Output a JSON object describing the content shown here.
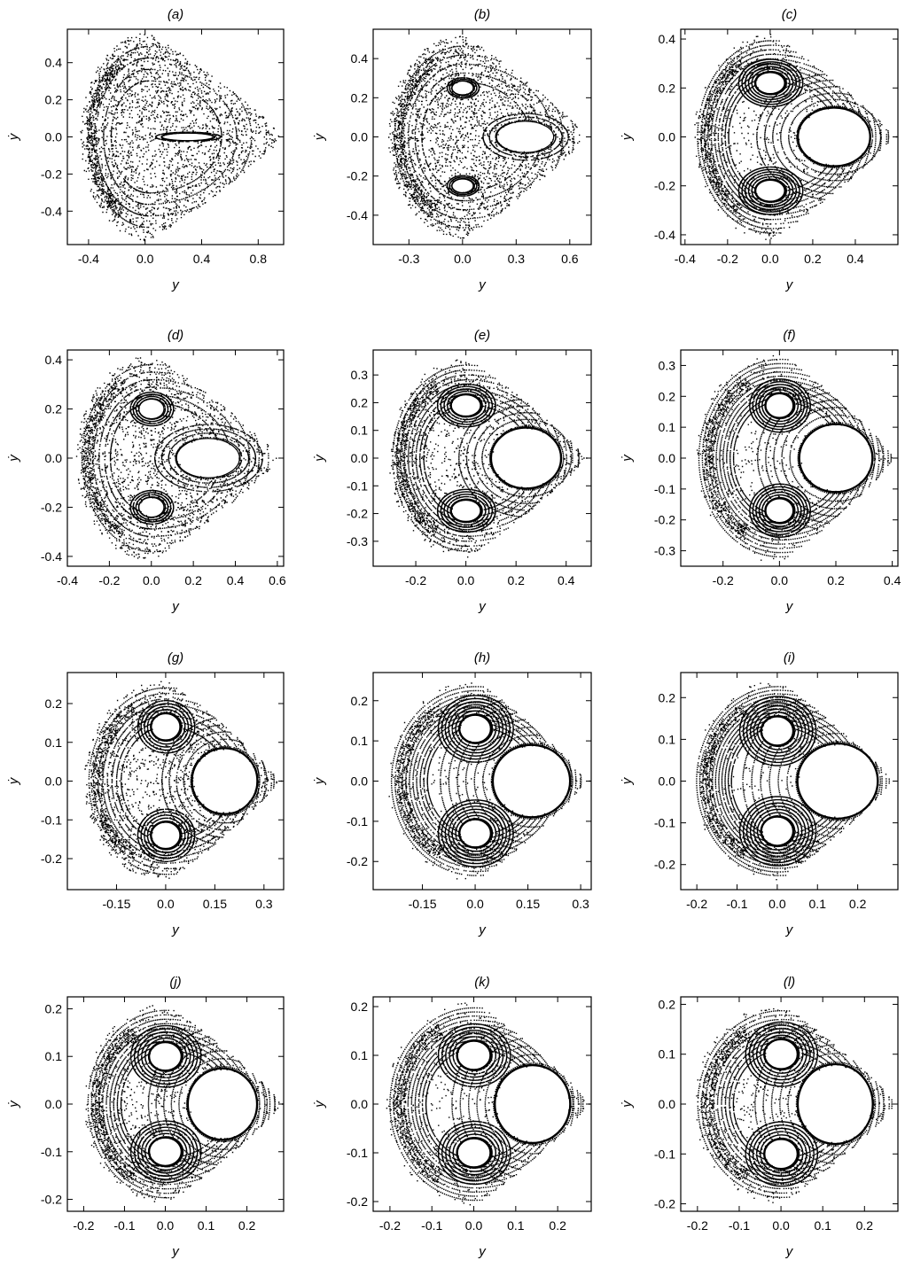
{
  "figure": {
    "background": "#ffffff",
    "ink": "#000000"
  },
  "chart_data": [
    {
      "panel": "(a)",
      "type": "scatter",
      "title": "(a)",
      "xlabel": "y",
      "ylabel": "ẏ",
      "xlim": [
        -0.55,
        0.98
      ],
      "ylim": [
        -0.58,
        0.58
      ],
      "xticks": [
        -0.4,
        0.0,
        0.4,
        0.8
      ],
      "xtick_labels": [
        "-0.4",
        "0.0",
        "0.4",
        "0.8"
      ],
      "yticks": [
        -0.4,
        -0.2,
        0.0,
        0.2,
        0.4
      ],
      "ytick_labels": [
        "-0.4",
        "-0.2",
        "0.0",
        "0.2",
        "0.4"
      ],
      "boundary": {
        "x_min": -0.46,
        "x_max": 0.96,
        "y_max": 0.56,
        "x_at_ymax": 0.02
      },
      "islands": [
        {
          "x": 0.3,
          "y": 0.0,
          "rx": 0.18,
          "ry": 0.02
        }
      ],
      "regularity": 0.05
    },
    {
      "panel": "(b)",
      "type": "scatter",
      "title": "(b)",
      "xlabel": "y",
      "ylabel": "ẏ",
      "xlim": [
        -0.5,
        0.72
      ],
      "ylim": [
        -0.55,
        0.55
      ],
      "xticks": [
        -0.3,
        0.0,
        0.3,
        0.6
      ],
      "xtick_labels": [
        "-0.3",
        "0.0",
        "0.3",
        "0.6"
      ],
      "yticks": [
        -0.4,
        -0.2,
        0.0,
        0.2,
        0.4
      ],
      "ytick_labels": [
        "-0.4",
        "-0.2",
        "0.0",
        "0.2",
        "0.4"
      ],
      "boundary": {
        "x_min": -0.42,
        "x_max": 0.68,
        "y_max": 0.52,
        "x_at_ymax": 0.0
      },
      "islands": [
        {
          "x": 0.35,
          "y": 0.0,
          "rx": 0.16,
          "ry": 0.08
        },
        {
          "x": 0.0,
          "y": 0.25,
          "rx": 0.06,
          "ry": 0.035
        },
        {
          "x": 0.0,
          "y": -0.25,
          "rx": 0.06,
          "ry": 0.035
        }
      ],
      "regularity": 0.15
    },
    {
      "panel": "(c)",
      "type": "scatter",
      "title": "(c)",
      "xlabel": "y",
      "ylabel": "ẏ",
      "xlim": [
        -0.42,
        0.6
      ],
      "ylim": [
        -0.44,
        0.44
      ],
      "xticks": [
        -0.4,
        -0.2,
        0.0,
        0.2,
        0.4
      ],
      "xtick_labels": [
        "-0.4",
        "-0.2",
        "0.0",
        "0.2",
        "0.4"
      ],
      "yticks": [
        -0.4,
        -0.2,
        0.0,
        0.2,
        0.4
      ],
      "ytick_labels": [
        "-0.4",
        "-0.2",
        "0.0",
        "0.2",
        "0.4"
      ],
      "boundary": {
        "x_min": -0.36,
        "x_max": 0.57,
        "y_max": 0.42,
        "x_at_ymax": 0.0
      },
      "islands": [
        {
          "x": 0.3,
          "y": 0.0,
          "rx": 0.17,
          "ry": 0.12
        },
        {
          "x": 0.0,
          "y": 0.22,
          "rx": 0.07,
          "ry": 0.045
        },
        {
          "x": 0.0,
          "y": -0.22,
          "rx": 0.07,
          "ry": 0.045
        }
      ],
      "regularity": 0.75
    },
    {
      "panel": "(d)",
      "type": "scatter",
      "title": "(d)",
      "xlabel": "y",
      "ylabel": "ẏ",
      "xlim": [
        -0.4,
        0.63
      ],
      "ylim": [
        -0.44,
        0.44
      ],
      "xticks": [
        -0.4,
        -0.2,
        0.0,
        0.2,
        0.4,
        0.6
      ],
      "xtick_labels": [
        "-0.4",
        "-0.2",
        "0.0",
        "0.2",
        "0.4",
        "0.6"
      ],
      "yticks": [
        -0.4,
        -0.2,
        0.0,
        0.2,
        0.4
      ],
      "ytick_labels": [
        "-0.4",
        "-0.2",
        "0.0",
        "0.2",
        "0.4"
      ],
      "boundary": {
        "x_min": -0.36,
        "x_max": 0.6,
        "y_max": 0.42,
        "x_at_ymax": 0.0
      },
      "islands": [
        {
          "x": 0.27,
          "y": 0.0,
          "rx": 0.15,
          "ry": 0.08
        },
        {
          "x": 0.0,
          "y": 0.2,
          "rx": 0.06,
          "ry": 0.04
        },
        {
          "x": 0.0,
          "y": -0.2,
          "rx": 0.06,
          "ry": 0.04
        }
      ],
      "regularity": 0.3
    },
    {
      "panel": "(e)",
      "type": "scatter",
      "title": "(e)",
      "xlabel": "y",
      "ylabel": "ẏ",
      "xlim": [
        -0.37,
        0.5
      ],
      "ylim": [
        -0.39,
        0.39
      ],
      "xticks": [
        -0.2,
        0.0,
        0.2,
        0.4
      ],
      "xtick_labels": [
        "-0.2",
        "0.0",
        "0.2",
        "0.4"
      ],
      "yticks": [
        -0.3,
        -0.2,
        -0.1,
        0.0,
        0.1,
        0.2,
        0.3
      ],
      "ytick_labels": [
        "-0.3",
        "-0.2",
        "-0.1",
        "0.0",
        "0.1",
        "0.2",
        "0.3"
      ],
      "boundary": {
        "x_min": -0.31,
        "x_max": 0.47,
        "y_max": 0.36,
        "x_at_ymax": 0.0
      },
      "islands": [
        {
          "x": 0.24,
          "y": 0.0,
          "rx": 0.14,
          "ry": 0.11
        },
        {
          "x": 0.0,
          "y": 0.19,
          "rx": 0.06,
          "ry": 0.04
        },
        {
          "x": 0.0,
          "y": -0.19,
          "rx": 0.06,
          "ry": 0.04
        }
      ],
      "regularity": 0.6
    },
    {
      "panel": "(f)",
      "type": "scatter",
      "title": "(f)",
      "xlabel": "y",
      "ylabel": "ẏ",
      "xlim": [
        -0.35,
        0.42
      ],
      "ylim": [
        -0.35,
        0.35
      ],
      "xticks": [
        -0.2,
        0.0,
        0.2,
        0.4
      ],
      "xtick_labels": [
        "-0.2",
        "0.0",
        "0.2",
        "0.4"
      ],
      "yticks": [
        -0.3,
        -0.2,
        -0.1,
        0.0,
        0.1,
        0.2,
        0.3
      ],
      "ytick_labels": [
        "-0.3",
        "-0.2",
        "-0.1",
        "0.0",
        "0.1",
        "0.2",
        "0.3"
      ],
      "boundary": {
        "x_min": -0.3,
        "x_max": 0.4,
        "y_max": 0.34,
        "x_at_ymax": 0.0
      },
      "islands": [
        {
          "x": 0.2,
          "y": 0.0,
          "rx": 0.13,
          "ry": 0.11
        },
        {
          "x": 0.0,
          "y": 0.17,
          "rx": 0.05,
          "ry": 0.04
        },
        {
          "x": 0.0,
          "y": -0.17,
          "rx": 0.05,
          "ry": 0.04
        }
      ],
      "regularity": 0.85
    },
    {
      "panel": "(g)",
      "type": "scatter",
      "title": "(g)",
      "xlabel": "y",
      "ylabel": "ẏ",
      "xlim": [
        -0.3,
        0.36
      ],
      "ylim": [
        -0.28,
        0.28
      ],
      "xticks": [
        -0.15,
        0.0,
        0.15,
        0.3
      ],
      "xtick_labels": [
        "-0.15",
        "0.0",
        "0.15",
        "0.3"
      ],
      "yticks": [
        -0.2,
        -0.1,
        0.0,
        0.1,
        0.2
      ],
      "ytick_labels": [
        "-0.2",
        "-0.1",
        "0.0",
        "0.1",
        "0.2"
      ],
      "boundary": {
        "x_min": -0.25,
        "x_max": 0.34,
        "y_max": 0.26,
        "x_at_ymax": 0.0
      },
      "islands": [
        {
          "x": 0.18,
          "y": 0.0,
          "rx": 0.1,
          "ry": 0.085
        },
        {
          "x": 0.0,
          "y": 0.14,
          "rx": 0.045,
          "ry": 0.035
        },
        {
          "x": 0.0,
          "y": -0.14,
          "rx": 0.045,
          "ry": 0.035
        }
      ],
      "regularity": 0.5
    },
    {
      "panel": "(h)",
      "type": "scatter",
      "title": "(h)",
      "xlabel": "y",
      "ylabel": "ẏ",
      "xlim": [
        -0.29,
        0.33
      ],
      "ylim": [
        -0.27,
        0.27
      ],
      "xticks": [
        -0.15,
        0.0,
        0.15,
        0.3
      ],
      "xtick_labels": [
        "-0.15",
        "0.0",
        "0.15",
        "0.3"
      ],
      "yticks": [
        -0.2,
        -0.1,
        0.0,
        0.1,
        0.2
      ],
      "ytick_labels": [
        "-0.2",
        "-0.1",
        "0.0",
        "0.1",
        "0.2"
      ],
      "boundary": {
        "x_min": -0.25,
        "x_max": 0.31,
        "y_max": 0.25,
        "x_at_ymax": 0.0
      },
      "islands": [
        {
          "x": 0.16,
          "y": 0.0,
          "rx": 0.11,
          "ry": 0.09
        },
        {
          "x": 0.0,
          "y": 0.13,
          "rx": 0.045,
          "ry": 0.035
        },
        {
          "x": 0.0,
          "y": -0.13,
          "rx": 0.045,
          "ry": 0.035
        }
      ],
      "regularity": 0.9
    },
    {
      "panel": "(i)",
      "type": "scatter",
      "title": "(i)",
      "xlabel": "y",
      "ylabel": "ẏ",
      "xlim": [
        -0.24,
        0.3
      ],
      "ylim": [
        -0.26,
        0.26
      ],
      "xticks": [
        -0.2,
        -0.1,
        0.0,
        0.1,
        0.2
      ],
      "xtick_labels": [
        "-0.2",
        "-0.1",
        "0.0",
        "0.1",
        "0.2"
      ],
      "yticks": [
        -0.2,
        -0.1,
        0.0,
        0.1,
        0.2
      ],
      "ytick_labels": [
        "-0.2",
        "-0.1",
        "0.0",
        "0.1",
        "0.2"
      ],
      "boundary": {
        "x_min": -0.21,
        "x_max": 0.28,
        "y_max": 0.24,
        "x_at_ymax": 0.0
      },
      "islands": [
        {
          "x": 0.15,
          "y": 0.0,
          "rx": 0.1,
          "ry": 0.09
        },
        {
          "x": 0.0,
          "y": 0.12,
          "rx": 0.04,
          "ry": 0.035
        },
        {
          "x": 0.0,
          "y": -0.12,
          "rx": 0.04,
          "ry": 0.035
        }
      ],
      "regularity": 0.95
    },
    {
      "panel": "(j)",
      "type": "scatter",
      "title": "(j)",
      "xlabel": "y",
      "ylabel": "ẏ",
      "xlim": [
        -0.24,
        0.29
      ],
      "ylim": [
        -0.225,
        0.225
      ],
      "xticks": [
        -0.2,
        -0.1,
        0.0,
        0.1,
        0.2
      ],
      "xtick_labels": [
        "-0.2",
        "-0.1",
        "0.0",
        "0.1",
        "0.2"
      ],
      "yticks": [
        -0.2,
        -0.1,
        0.0,
        0.1,
        0.2
      ],
      "ytick_labels": [
        "-0.2",
        "-0.1",
        "0.0",
        "0.1",
        "0.2"
      ],
      "boundary": {
        "x_min": -0.2,
        "x_max": 0.28,
        "y_max": 0.21,
        "x_at_ymax": 0.0
      },
      "islands": [
        {
          "x": 0.14,
          "y": 0.0,
          "rx": 0.085,
          "ry": 0.075
        },
        {
          "x": 0.0,
          "y": 0.1,
          "rx": 0.04,
          "ry": 0.03
        },
        {
          "x": 0.0,
          "y": -0.1,
          "rx": 0.04,
          "ry": 0.03
        }
      ],
      "regularity": 0.7
    },
    {
      "panel": "(k)",
      "type": "scatter",
      "title": "(k)",
      "xlabel": "y",
      "ylabel": "ẏ",
      "xlim": [
        -0.24,
        0.28
      ],
      "ylim": [
        -0.22,
        0.22
      ],
      "xticks": [
        -0.2,
        -0.1,
        0.0,
        0.1,
        0.2
      ],
      "xtick_labels": [
        "-0.2",
        "-0.1",
        "0.0",
        "0.1",
        "0.2"
      ],
      "yticks": [
        -0.2,
        -0.1,
        0.0,
        0.1,
        0.2
      ],
      "ytick_labels": [
        "-0.2",
        "-0.1",
        "0.0",
        "0.1",
        "0.2"
      ],
      "boundary": {
        "x_min": -0.21,
        "x_max": 0.27,
        "y_max": 0.21,
        "x_at_ymax": 0.0
      },
      "islands": [
        {
          "x": 0.14,
          "y": 0.0,
          "rx": 0.09,
          "ry": 0.08
        },
        {
          "x": 0.0,
          "y": 0.1,
          "rx": 0.04,
          "ry": 0.03
        },
        {
          "x": 0.0,
          "y": -0.1,
          "rx": 0.04,
          "ry": 0.03
        }
      ],
      "regularity": 0.85
    },
    {
      "panel": "(l)",
      "type": "scatter",
      "title": "(l)",
      "xlabel": "y",
      "ylabel": "ẏ",
      "xlim": [
        -0.24,
        0.28
      ],
      "ylim": [
        -0.215,
        0.215
      ],
      "xticks": [
        -0.2,
        -0.1,
        0.0,
        0.1,
        0.2
      ],
      "xtick_labels": [
        "-0.2",
        "-0.1",
        "0.0",
        "0.1",
        "0.2"
      ],
      "yticks": [
        -0.2,
        -0.1,
        0.0,
        0.1,
        0.2
      ],
      "ytick_labels": [
        "-0.2",
        "-0.1",
        "0.0",
        "0.1",
        "0.2"
      ],
      "boundary": {
        "x_min": -0.21,
        "x_max": 0.27,
        "y_max": 0.2,
        "x_at_ymax": 0.0
      },
      "islands": [
        {
          "x": 0.13,
          "y": 0.0,
          "rx": 0.09,
          "ry": 0.08
        },
        {
          "x": 0.0,
          "y": 0.1,
          "rx": 0.04,
          "ry": 0.03
        },
        {
          "x": 0.0,
          "y": -0.1,
          "rx": 0.04,
          "ry": 0.03
        }
      ],
      "regularity": 0.8
    }
  ]
}
